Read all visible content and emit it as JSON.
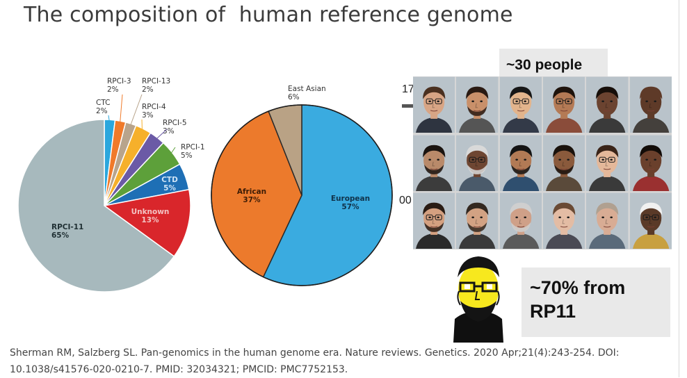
{
  "slide": {
    "title": "The composition of  human reference genome",
    "people_label": "~30 people",
    "callout": "~70% from RP11",
    "fragment_top": "17",
    "fragment_mid": "00",
    "citation": "Sherman RM, Salzberg SL. Pan-genomics in the human genome era. Nature reviews. Genetics. 2020 Apr;21(4):243-254. DOI: 10.1038/s41576-020-0210-7. PMID: 32034321; PMCID: PMC7752153."
  },
  "chart_data": [
    {
      "type": "pie",
      "slices": [
        {
          "label": "RPCI-11",
          "value": 65,
          "value_label": "65%",
          "color": "#a7b9bd"
        },
        {
          "label": "Unknown",
          "value": 13,
          "value_label": "13%",
          "color": "#d9262b"
        },
        {
          "label": "CTD",
          "value": 5,
          "value_label": "5%",
          "color": "#1e6fb5"
        },
        {
          "label": "RPCI-1",
          "value": 5,
          "value_label": "5%",
          "color": "#5da03a"
        },
        {
          "label": "RPCI-5",
          "value": 3,
          "value_label": "3%",
          "color": "#6b5aa6"
        },
        {
          "label": "RPCI-4",
          "value": 3,
          "value_label": "3%",
          "color": "#f6b02b"
        },
        {
          "label": "RPCI-13",
          "value": 2,
          "value_label": "2%",
          "color": "#b8a48c"
        },
        {
          "label": "RPCI-3",
          "value": 2,
          "value_label": "2%",
          "color": "#f07a2a"
        },
        {
          "label": "CTC",
          "value": 2,
          "value_label": "2%",
          "color": "#2ba7dd"
        }
      ]
    },
    {
      "type": "pie",
      "slices": [
        {
          "label": "European",
          "value": 57,
          "value_label": "57%",
          "color": "#3aabe0"
        },
        {
          "label": "African",
          "value": 37,
          "value_label": "37%",
          "color": "#ec7a2c"
        },
        {
          "label": "East Asian",
          "value": 6,
          "value_label": "6%",
          "color": "#b9a285"
        }
      ]
    }
  ],
  "faces": [
    {
      "skin": "#d8a585",
      "hair": "#4a3020",
      "glasses": true,
      "beard": false,
      "shirt": "#2e3440"
    },
    {
      "skin": "#c9906a",
      "hair": "#2a1a12",
      "glasses": false,
      "beard": true,
      "shirt": "#555555"
    },
    {
      "skin": "#e2b48c",
      "hair": "#161616",
      "glasses": true,
      "beard": false,
      "shirt": "#333a48"
    },
    {
      "skin": "#b47a55",
      "hair": "#1e130c",
      "glasses": true,
      "beard": false,
      "shirt": "#8a4c3a"
    },
    {
      "skin": "#6b4330",
      "hair": "#160e09",
      "glasses": false,
      "beard": false,
      "shirt": "#3a3a3a"
    },
    {
      "skin": "#5e3a28",
      "hair": "#5e3a28",
      "glasses": false,
      "beard": false,
      "shirt": "#44403c"
    },
    {
      "skin": "#b98a6a",
      "hair": "#1b1410",
      "glasses": false,
      "beard": true,
      "shirt": "#3c3c3c"
    },
    {
      "skin": "#6e4632",
      "hair": "#d9d9d9",
      "glasses": true,
      "beard": true,
      "shirt": "#4a5a6a"
    },
    {
      "skin": "#b27a55",
      "hair": "#141414",
      "glasses": false,
      "beard": true,
      "shirt": "#2f4f6f"
    },
    {
      "skin": "#8a5a3c",
      "hair": "#1a120c",
      "glasses": false,
      "beard": true,
      "shirt": "#5a4a3a"
    },
    {
      "skin": "#e4b89a",
      "hair": "#3a2418",
      "glasses": true,
      "beard": false,
      "shirt": "#3a3a3a"
    },
    {
      "skin": "#6a402c",
      "hair": "#120c08",
      "glasses": false,
      "beard": false,
      "shirt": "#9a3030"
    },
    {
      "skin": "#d4a080",
      "hair": "#2a1c14",
      "glasses": true,
      "beard": true,
      "shirt": "#2a2a2a"
    },
    {
      "skin": "#d2a283",
      "hair": "#332820",
      "glasses": false,
      "beard": true,
      "shirt": "#3a3a3a"
    },
    {
      "skin": "#cfa088",
      "hair": "#cfcfcf",
      "glasses": false,
      "beard": true,
      "shirt": "#5a5a5a"
    },
    {
      "skin": "#e3bca4",
      "hair": "#6a4a34",
      "glasses": false,
      "beard": false,
      "shirt": "#4a4a54"
    },
    {
      "skin": "#d8ac94",
      "hair": "#b0a090",
      "glasses": false,
      "beard": false,
      "shirt": "#5a6a7a"
    },
    {
      "skin": "#5a3a28",
      "hair": "#f0f0f0",
      "glasses": true,
      "beard": false,
      "shirt": "#c8a040"
    }
  ]
}
